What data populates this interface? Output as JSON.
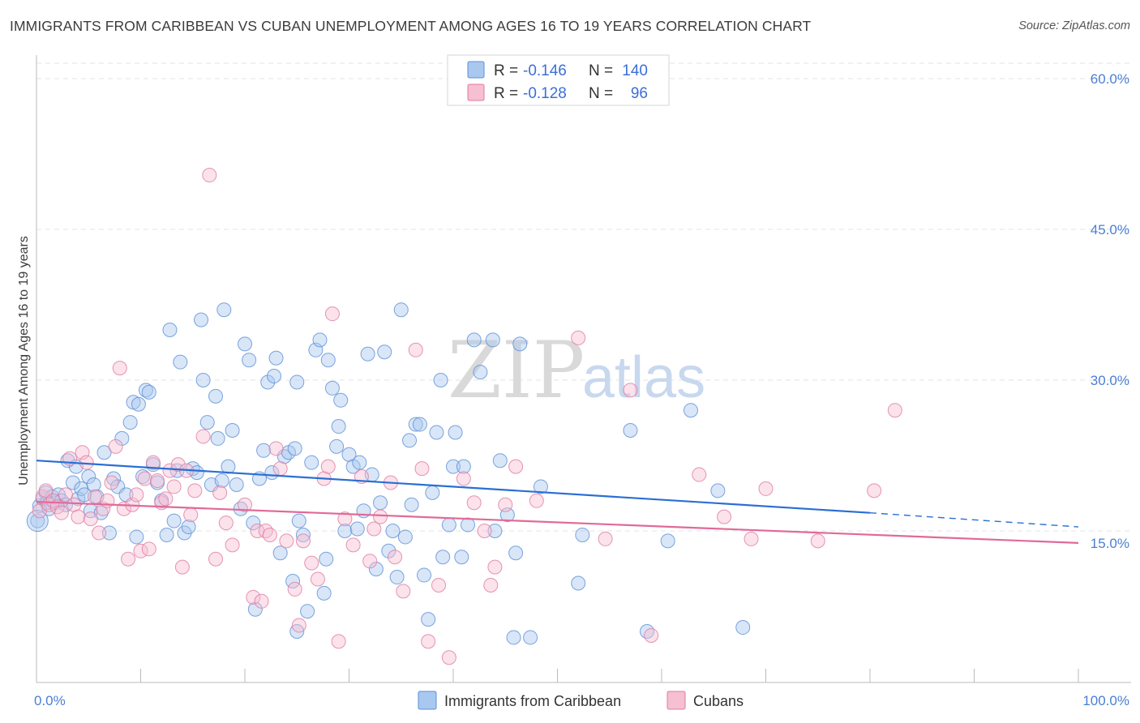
{
  "title": "IMMIGRANTS FROM CARIBBEAN VS CUBAN UNEMPLOYMENT AMONG AGES 16 TO 19 YEARS CORRELATION CHART",
  "source": "Source: ZipAtlas.com",
  "watermark": {
    "zip": "ZIP",
    "atlas": "atlas"
  },
  "colors": {
    "blue_fill": "#a9c8f0",
    "blue_stroke": "#5b8fd6",
    "blue_line": "#2a6fd4",
    "pink_fill": "#f6bfd2",
    "pink_stroke": "#e07aa0",
    "pink_line": "#e06a98",
    "grid": "#e3e3e3",
    "tick_label": "#4a7fd4"
  },
  "legend": {
    "rows": [
      {
        "r_label": "R =",
        "r_value": "-0.146",
        "n_label": "N =",
        "n_value": "140",
        "color": "blue"
      },
      {
        "r_label": "R =",
        "r_value": "-0.128",
        "n_label": "N =",
        "n_value": "96",
        "color": "pink"
      }
    ]
  },
  "chart_data": {
    "type": "scatter",
    "title": "IMMIGRANTS FROM CARIBBEAN VS CUBAN UNEMPLOYMENT AMONG AGES 16 TO 19 YEARS CORRELATION CHART",
    "xlabel": "",
    "ylabel": "Unemployment Among Ages 16 to 19 years",
    "xlim": [
      0,
      100
    ],
    "ylim": [
      0,
      65
    ],
    "x_tick_labels": [
      "0.0%",
      "100.0%"
    ],
    "y_ticks": [
      15,
      30,
      45,
      60
    ],
    "y_tick_labels": [
      "15.0%",
      "30.0%",
      "45.0%",
      "60.0%"
    ],
    "grid": "horizontal dashed",
    "legend_placement": "top-center",
    "series": [
      {
        "name": "Immigrants from Caribbean",
        "color": "blue",
        "trend": {
          "x": [
            0,
            80
          ],
          "y": [
            22.0,
            16.8
          ],
          "dashed_extension": {
            "x": [
              80,
              100
            ],
            "y": [
              16.8,
              15.4
            ]
          }
        },
        "points": [
          [
            0.3,
            17.5
          ],
          [
            0.6,
            18.2
          ],
          [
            0.9,
            18.8
          ],
          [
            1.2,
            17.2
          ],
          [
            1.5,
            18.4
          ],
          [
            1.8,
            17.8
          ],
          [
            2.1,
            18.6
          ],
          [
            2.4,
            18.0
          ],
          [
            2.8,
            17.6
          ],
          [
            3.0,
            22.0
          ],
          [
            3.5,
            19.8
          ],
          [
            3.8,
            21.4
          ],
          [
            4.0,
            18.2
          ],
          [
            4.3,
            19.2
          ],
          [
            4.6,
            18.6
          ],
          [
            5.0,
            20.4
          ],
          [
            5.2,
            17.0
          ],
          [
            5.5,
            19.6
          ],
          [
            5.8,
            18.4
          ],
          [
            6.2,
            16.8
          ],
          [
            6.5,
            22.8
          ],
          [
            7.0,
            14.8
          ],
          [
            7.4,
            20.2
          ],
          [
            7.8,
            19.4
          ],
          [
            8.2,
            24.2
          ],
          [
            8.6,
            18.6
          ],
          [
            9.0,
            25.8
          ],
          [
            9.3,
            27.8
          ],
          [
            9.6,
            14.4
          ],
          [
            9.8,
            27.6
          ],
          [
            10.2,
            20.4
          ],
          [
            10.5,
            29.0
          ],
          [
            10.8,
            28.8
          ],
          [
            11.2,
            21.6
          ],
          [
            11.6,
            19.8
          ],
          [
            12.0,
            18.0
          ],
          [
            12.5,
            14.6
          ],
          [
            12.8,
            35.0
          ],
          [
            13.2,
            16.0
          ],
          [
            13.5,
            21.0
          ],
          [
            13.8,
            31.8
          ],
          [
            14.2,
            14.8
          ],
          [
            14.6,
            15.4
          ],
          [
            15.0,
            21.2
          ],
          [
            15.4,
            20.8
          ],
          [
            15.8,
            36.0
          ],
          [
            16.0,
            30.0
          ],
          [
            16.4,
            25.8
          ],
          [
            16.8,
            19.6
          ],
          [
            17.2,
            28.4
          ],
          [
            17.4,
            24.2
          ],
          [
            17.8,
            20.0
          ],
          [
            18.0,
            37.0
          ],
          [
            18.4,
            21.4
          ],
          [
            18.8,
            25.0
          ],
          [
            19.2,
            19.6
          ],
          [
            19.6,
            17.2
          ],
          [
            20.0,
            33.6
          ],
          [
            20.4,
            32.0
          ],
          [
            20.8,
            15.8
          ],
          [
            21.0,
            7.2
          ],
          [
            21.4,
            20.2
          ],
          [
            21.8,
            23.0
          ],
          [
            22.2,
            29.8
          ],
          [
            22.6,
            20.8
          ],
          [
            22.8,
            30.4
          ],
          [
            23.0,
            32.2
          ],
          [
            23.4,
            12.8
          ],
          [
            23.8,
            22.4
          ],
          [
            24.2,
            22.8
          ],
          [
            24.6,
            10.0
          ],
          [
            24.8,
            23.2
          ],
          [
            25.0,
            29.8
          ],
          [
            25.2,
            16.0
          ],
          [
            25.6,
            14.6
          ],
          [
            25.0,
            5.0
          ],
          [
            26.0,
            7.0
          ],
          [
            26.4,
            21.8
          ],
          [
            26.8,
            33.0
          ],
          [
            27.2,
            34.0
          ],
          [
            27.6,
            8.8
          ],
          [
            27.8,
            12.2
          ],
          [
            28.0,
            32.0
          ],
          [
            28.4,
            29.2
          ],
          [
            28.8,
            23.4
          ],
          [
            29.0,
            25.4
          ],
          [
            29.2,
            28.0
          ],
          [
            29.6,
            15.0
          ],
          [
            30.0,
            22.6
          ],
          [
            30.4,
            21.4
          ],
          [
            30.8,
            15.2
          ],
          [
            31.0,
            21.8
          ],
          [
            31.4,
            17.0
          ],
          [
            31.8,
            32.6
          ],
          [
            32.2,
            20.6
          ],
          [
            32.6,
            11.2
          ],
          [
            33.0,
            17.8
          ],
          [
            33.4,
            32.8
          ],
          [
            33.8,
            13.0
          ],
          [
            34.2,
            15.0
          ],
          [
            34.6,
            10.4
          ],
          [
            35.0,
            37.0
          ],
          [
            35.4,
            14.4
          ],
          [
            35.8,
            24.0
          ],
          [
            36.0,
            17.6
          ],
          [
            36.4,
            25.6
          ],
          [
            36.8,
            25.6
          ],
          [
            37.2,
            10.6
          ],
          [
            37.6,
            6.2
          ],
          [
            38.0,
            18.8
          ],
          [
            38.4,
            24.8
          ],
          [
            38.8,
            30.0
          ],
          [
            39.0,
            12.4
          ],
          [
            39.6,
            15.6
          ],
          [
            40.0,
            21.4
          ],
          [
            40.2,
            24.8
          ],
          [
            40.8,
            12.4
          ],
          [
            41.0,
            21.4
          ],
          [
            41.4,
            15.6
          ],
          [
            42.0,
            34.0
          ],
          [
            42.6,
            30.8
          ],
          [
            43.8,
            34.0
          ],
          [
            44.0,
            15.0
          ],
          [
            45.2,
            16.6
          ],
          [
            45.8,
            4.4
          ],
          [
            46.0,
            12.8
          ],
          [
            46.4,
            33.6
          ],
          [
            47.4,
            4.4
          ],
          [
            48.4,
            19.4
          ],
          [
            52.0,
            9.8
          ],
          [
            52.4,
            14.6
          ],
          [
            58.6,
            5.0
          ],
          [
            60.6,
            14.0
          ],
          [
            62.8,
            27.0
          ],
          [
            65.4,
            19.0
          ],
          [
            67.8,
            5.4
          ],
          [
            0.1,
            16.0
          ],
          [
            1.0,
            17.8
          ],
          [
            57.0,
            25.0
          ],
          [
            44.5,
            22.0
          ]
        ]
      },
      {
        "name": "Cubans",
        "color": "pink",
        "trend": {
          "x": [
            0,
            100
          ],
          "y": [
            17.9,
            13.8
          ]
        },
        "points": [
          [
            0.3,
            17.0
          ],
          [
            0.6,
            18.4
          ],
          [
            0.9,
            19.0
          ],
          [
            1.2,
            17.6
          ],
          [
            1.6,
            18.0
          ],
          [
            2.0,
            17.4
          ],
          [
            2.4,
            16.8
          ],
          [
            2.8,
            18.6
          ],
          [
            3.2,
            22.2
          ],
          [
            3.6,
            17.6
          ],
          [
            4.0,
            16.4
          ],
          [
            4.4,
            22.8
          ],
          [
            4.8,
            21.8
          ],
          [
            5.2,
            16.2
          ],
          [
            5.6,
            18.4
          ],
          [
            6.0,
            14.8
          ],
          [
            6.4,
            17.2
          ],
          [
            6.8,
            18.0
          ],
          [
            7.2,
            19.8
          ],
          [
            7.6,
            23.4
          ],
          [
            8.0,
            31.2
          ],
          [
            8.4,
            17.2
          ],
          [
            8.8,
            12.2
          ],
          [
            9.2,
            17.6
          ],
          [
            9.6,
            18.6
          ],
          [
            10.0,
            13.0
          ],
          [
            10.4,
            20.2
          ],
          [
            10.8,
            13.2
          ],
          [
            11.2,
            21.8
          ],
          [
            11.6,
            20.0
          ],
          [
            12.0,
            17.8
          ],
          [
            12.4,
            18.2
          ],
          [
            12.8,
            21.0
          ],
          [
            13.2,
            19.4
          ],
          [
            13.6,
            21.6
          ],
          [
            14.0,
            11.4
          ],
          [
            14.4,
            21.0
          ],
          [
            14.8,
            16.6
          ],
          [
            15.2,
            19.0
          ],
          [
            16.0,
            24.4
          ],
          [
            16.6,
            50.4
          ],
          [
            17.2,
            12.2
          ],
          [
            17.6,
            18.8
          ],
          [
            18.2,
            15.8
          ],
          [
            18.8,
            13.6
          ],
          [
            20.0,
            17.6
          ],
          [
            20.8,
            8.4
          ],
          [
            21.2,
            15.0
          ],
          [
            21.6,
            8.0
          ],
          [
            22.0,
            15.0
          ],
          [
            22.4,
            14.6
          ],
          [
            23.0,
            23.2
          ],
          [
            23.4,
            21.2
          ],
          [
            24.0,
            14.0
          ],
          [
            24.8,
            9.2
          ],
          [
            25.2,
            5.6
          ],
          [
            25.6,
            14.0
          ],
          [
            26.4,
            11.8
          ],
          [
            27.0,
            10.2
          ],
          [
            27.6,
            20.2
          ],
          [
            28.0,
            21.4
          ],
          [
            28.4,
            36.6
          ],
          [
            29.0,
            4.0
          ],
          [
            29.6,
            16.2
          ],
          [
            30.4,
            13.6
          ],
          [
            31.2,
            20.4
          ],
          [
            32.0,
            12.0
          ],
          [
            32.4,
            15.2
          ],
          [
            33.0,
            16.4
          ],
          [
            34.0,
            19.8
          ],
          [
            34.4,
            12.4
          ],
          [
            35.2,
            9.0
          ],
          [
            36.4,
            33.0
          ],
          [
            37.0,
            21.2
          ],
          [
            37.6,
            4.0
          ],
          [
            38.6,
            9.6
          ],
          [
            39.6,
            2.4
          ],
          [
            41.0,
            20.2
          ],
          [
            42.0,
            17.8
          ],
          [
            43.0,
            15.0
          ],
          [
            43.6,
            9.6
          ],
          [
            44.0,
            11.4
          ],
          [
            45.0,
            17.6
          ],
          [
            46.0,
            21.4
          ],
          [
            48.0,
            18.0
          ],
          [
            52.0,
            34.2
          ],
          [
            54.6,
            14.2
          ],
          [
            57.0,
            29.0
          ],
          [
            59.0,
            4.6
          ],
          [
            63.6,
            20.6
          ],
          [
            66.0,
            16.4
          ],
          [
            68.6,
            14.2
          ],
          [
            70.0,
            19.2
          ],
          [
            75.0,
            14.0
          ],
          [
            80.4,
            19.0
          ],
          [
            82.4,
            27.0
          ]
        ]
      }
    ]
  },
  "bottom_legend": [
    {
      "label": "Immigrants from Caribbean",
      "color": "blue"
    },
    {
      "label": "Cubans",
      "color": "pink"
    }
  ]
}
